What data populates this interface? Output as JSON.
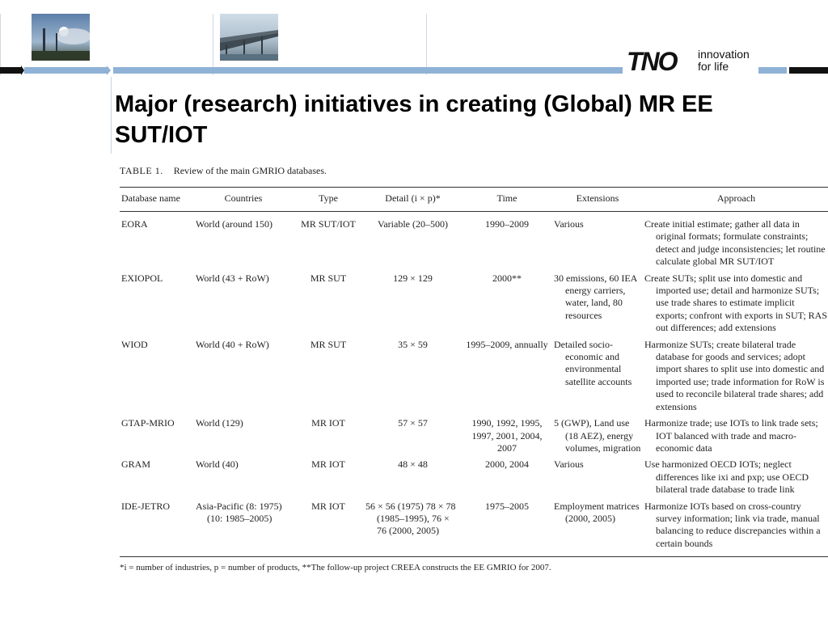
{
  "slide": {
    "title": "Major (research) initiatives in creating (Global) MR EE SUT/IOT"
  },
  "branding": {
    "logo_text": "TNO",
    "tagline_line1": "innovation",
    "tagline_line2": "for life"
  },
  "colors": {
    "stripe_blue": "#8fb2d6",
    "stripe_black": "#111111"
  },
  "table": {
    "caption_label": "TABLE 1.",
    "caption_text": "Review of the main GMRIO databases.",
    "columns": [
      "Database name",
      "Countries",
      "Type",
      "Detail (i × p)*",
      "Time",
      "Extensions",
      "Approach"
    ],
    "rows": [
      {
        "name": "EORA",
        "countries": "World (around 150)",
        "type": "MR SUT/IOT",
        "detail": "Variable (20–500)",
        "time": "1990–2009",
        "extensions": "Various",
        "approach": "Create initial estimate; gather all data in original formats; formulate constraints; detect and judge inconsistencies; let routine calculate global MR SUT/IOT"
      },
      {
        "name": "EXIOPOL",
        "countries": "World (43 + RoW)",
        "type": "MR SUT",
        "detail": "129 × 129",
        "time": "2000**",
        "extensions": "30 emissions, 60 IEA energy carriers, water, land, 80 resources",
        "approach": "Create SUTs; split use into domestic and imported use; detail and harmonize SUTs; use trade shares to estimate implicit exports; confront with exports in SUT; RAS out differences; add extensions"
      },
      {
        "name": "WIOD",
        "countries": "World (40 + RoW)",
        "type": "MR SUT",
        "detail": "35 × 59",
        "time": "1995–2009, annually",
        "extensions": "Detailed socio-economic and environmental satellite accounts",
        "approach": "Harmonize SUTs; create bilateral trade database for goods and services; adopt import shares to split use into domestic and imported use; trade information for RoW is used to reconcile bilateral trade shares; add extensions"
      },
      {
        "name": "GTAP-MRIO",
        "countries": "World (129)",
        "type": "MR IOT",
        "detail": "57 × 57",
        "time": "1990, 1992, 1995, 1997, 2001, 2004, 2007",
        "extensions": "5 (GWP), Land use (18 AEZ), energy volumes, migration",
        "approach": "Harmonize trade; use IOTs to link trade sets; IOT balanced with trade and macro-economic data"
      },
      {
        "name": "GRAM",
        "countries": "World (40)",
        "type": "MR IOT",
        "detail": "48 × 48",
        "time": "2000, 2004",
        "extensions": "Various",
        "approach": "Use harmonized OECD IOTs; neglect differences like ixi and pxp; use OECD bilateral trade database to trade link"
      },
      {
        "name": "IDE-JETRO",
        "countries": "Asia-Pacific (8: 1975) (10: 1985–2005)",
        "type": "MR IOT",
        "detail": "56 × 56 (1975) 78 × 78 (1985–1995), 76 × 76 (2000, 2005)",
        "time": "1975–2005",
        "extensions": "Employment matrices (2000, 2005)",
        "approach": "Harmonize IOTs based on cross-country survey information; link via trade, manual balancing to reduce discrepancies within a certain bounds"
      }
    ],
    "footnote": "*i = number of industries, p = number of products, **The follow-up project CREEA constructs the EE GMRIO for 2007."
  }
}
